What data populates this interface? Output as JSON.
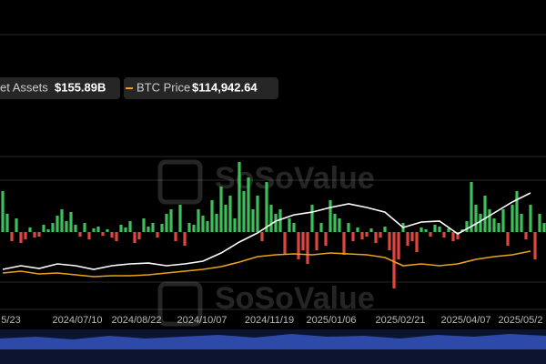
{
  "chart_data": {
    "type": "bar",
    "legend": [
      {
        "label": "et Assets",
        "value_text": "$155.89B",
        "color": "#ffffff"
      },
      {
        "label": "BTC Price",
        "value_text": "$114,942.64",
        "color": "#e8a317"
      }
    ],
    "watermark": "SoSoValue",
    "xlim": [
      0,
      119
    ],
    "xticks": [
      {
        "value": 1.8,
        "label": "5/23"
      },
      {
        "value": 16.4,
        "label": "2024/07/10"
      },
      {
        "value": 29.4,
        "label": "2024/08/22"
      },
      {
        "value": 43.8,
        "label": "2024/10/07"
      },
      {
        "value": 58.6,
        "label": "2024/11/19"
      },
      {
        "value": 72.2,
        "label": "2025/01/06"
      },
      {
        "value": 87.4,
        "label": "2025/02/21"
      },
      {
        "value": 101.8,
        "label": "2025/04/07"
      },
      {
        "value": 113.8,
        "label": "2025/05/2"
      }
    ],
    "ylim": [
      -70,
      80
    ],
    "y2lim": [
      50,
      160
    ],
    "y3lim": [
      60,
      120
    ],
    "positive_color": "#3dbf5a",
    "negative_color": "#e0453f",
    "flows": [
      45,
      20,
      -10,
      15,
      -12,
      -8,
      5,
      -6,
      -5,
      8,
      3,
      10,
      18,
      25,
      12,
      22,
      8,
      -5,
      10,
      -8,
      4,
      6,
      -4,
      3,
      -6,
      -10,
      8,
      5,
      12,
      -12,
      -8,
      15,
      6,
      10,
      -6,
      9,
      20,
      25,
      -10,
      30,
      -15,
      10,
      8,
      25,
      18,
      12,
      35,
      20,
      50,
      30,
      40,
      15,
      77,
      45,
      60,
      25,
      40,
      -10,
      55,
      30,
      20,
      25,
      -25,
      15,
      10,
      -30,
      -20,
      -35,
      30,
      -20,
      10,
      -15,
      35,
      20,
      15,
      -25,
      10,
      -10,
      5,
      -8,
      -5,
      4,
      -12,
      -6,
      6,
      -20,
      -62,
      -30,
      10,
      -15,
      -10,
      -22,
      5,
      3,
      -5,
      8,
      6,
      -6,
      4,
      -10,
      -8,
      3,
      12,
      55,
      30,
      20,
      40,
      25,
      15,
      10,
      25,
      -15,
      30,
      45,
      20,
      -8,
      30,
      -30,
      20,
      10
    ],
    "series": [
      {
        "name": "Net Assets",
        "color": "#ffffff",
        "axis": "y2",
        "x": [
          0,
          4,
          8,
          12,
          16,
          20,
          24,
          28,
          32,
          36,
          40,
          44,
          48,
          52,
          56,
          60,
          64,
          68,
          72,
          76,
          80,
          84,
          88,
          92,
          96,
          100,
          104,
          108,
          112,
          116
        ],
        "values": [
          56.5,
          60.3,
          57.5,
          62.1,
          60.3,
          56.5,
          60.3,
          62.1,
          63.0,
          60.3,
          62.1,
          64.9,
          73.3,
          84.5,
          93.8,
          105.9,
          112.4,
          115.2,
          119.9,
          123.6,
          119.9,
          115.2,
          99.4,
          105.0,
          105.9,
          92.9,
          103.1,
          114.3,
          125.5,
          134.8
        ]
      },
      {
        "name": "BTC Price",
        "color": "#e8a317",
        "axis": "y3",
        "x": [
          0,
          4,
          8,
          12,
          16,
          20,
          24,
          28,
          32,
          36,
          40,
          44,
          48,
          52,
          56,
          60,
          64,
          68,
          72,
          76,
          80,
          84,
          88,
          92,
          96,
          100,
          104,
          108,
          112,
          116
        ],
        "values": [
          73.3,
          76.7,
          71.7,
          73.3,
          70,
          66.7,
          68.3,
          68.3,
          70,
          73.3,
          76.7,
          80,
          85,
          93.3,
          103.3,
          106.7,
          108.3,
          106.7,
          110,
          108.3,
          106.7,
          101.7,
          86.7,
          90,
          86.7,
          90,
          98.3,
          103.3,
          106.7,
          113.3
        ]
      }
    ]
  }
}
